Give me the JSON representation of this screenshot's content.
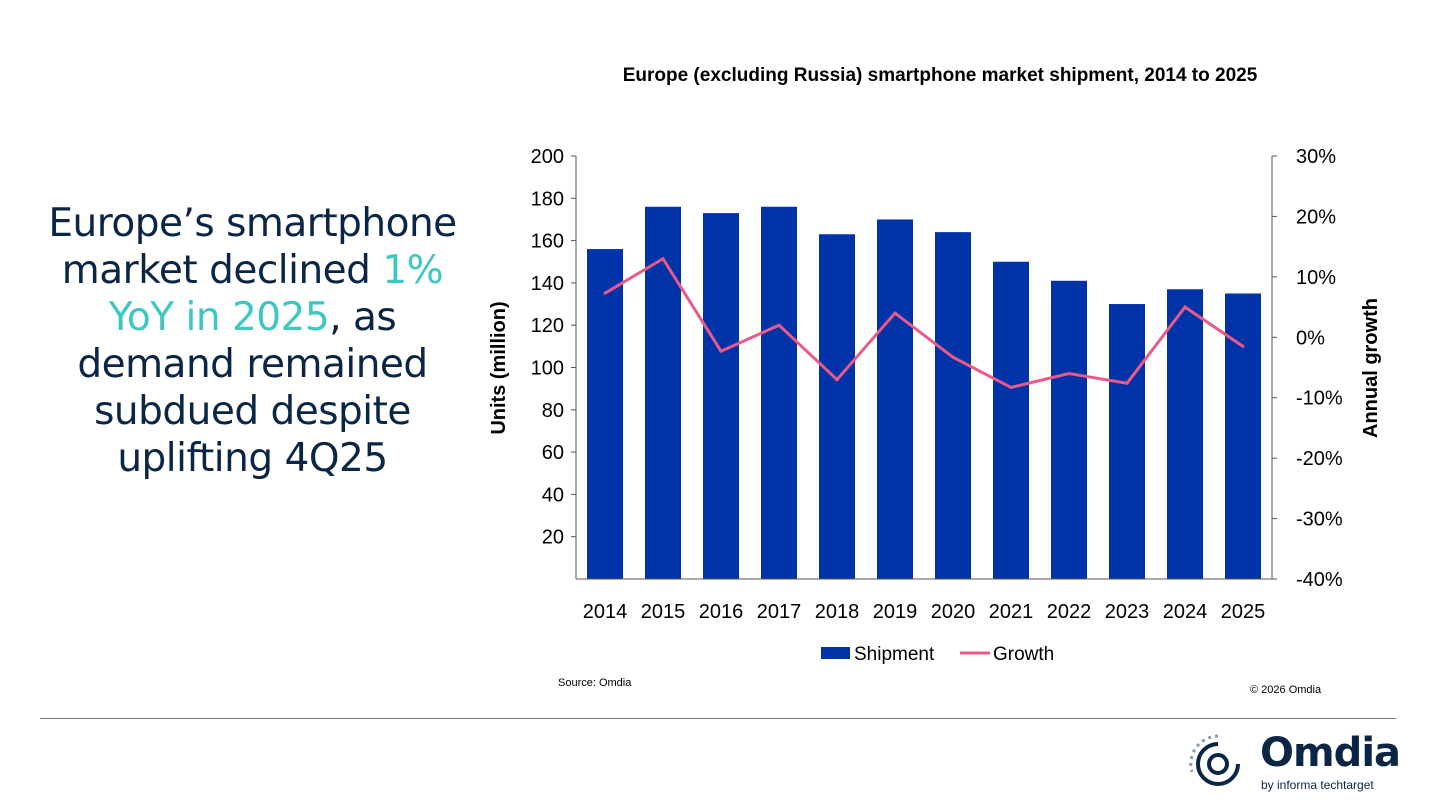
{
  "headline": {
    "pre": "Europe’s smartphone market declined ",
    "highlight": "1% YoY in 2025",
    "post": ", as demand remained subdued despite uplifting 4Q25"
  },
  "chart_data": {
    "type": "bar+line",
    "title": "Europe (excluding Russia) smartphone market shipment, 2014 to 2025",
    "categories": [
      "2014",
      "2015",
      "2016",
      "2017",
      "2018",
      "2019",
      "2020",
      "2021",
      "2022",
      "2023",
      "2024",
      "2025"
    ],
    "series": [
      {
        "name": "Shipment",
        "type": "bar",
        "axis": "left",
        "color": "#0033a8",
        "values": [
          156,
          176,
          173,
          176,
          163,
          170,
          164,
          150,
          141,
          130,
          137,
          135
        ]
      },
      {
        "name": "Growth",
        "type": "line",
        "axis": "right",
        "color": "#e85a87",
        "values": [
          7.3,
          13,
          -2.3,
          2,
          -7,
          4,
          -3.3,
          -8.3,
          -6,
          -7.6,
          5,
          -1.5
        ]
      }
    ],
    "ylabel": "Units (million)",
    "ylim": [
      0,
      200
    ],
    "yticks": [
      "20",
      "40",
      "60",
      "80",
      "100",
      "120",
      "140",
      "160",
      "180",
      "200"
    ],
    "y2label": "Annual growth",
    "y2lim": [
      -40,
      30
    ],
    "y2ticks": [
      "-40%",
      "-30%",
      "-20%",
      "-10%",
      "0%",
      "10%",
      "20%",
      "30%"
    ],
    "legend": "bottom",
    "grid": false
  },
  "source": "Source: Omdia",
  "copyright": "© 2026 Omdia",
  "logo": {
    "name": "Omdia",
    "sub": "by informa techtarget"
  }
}
